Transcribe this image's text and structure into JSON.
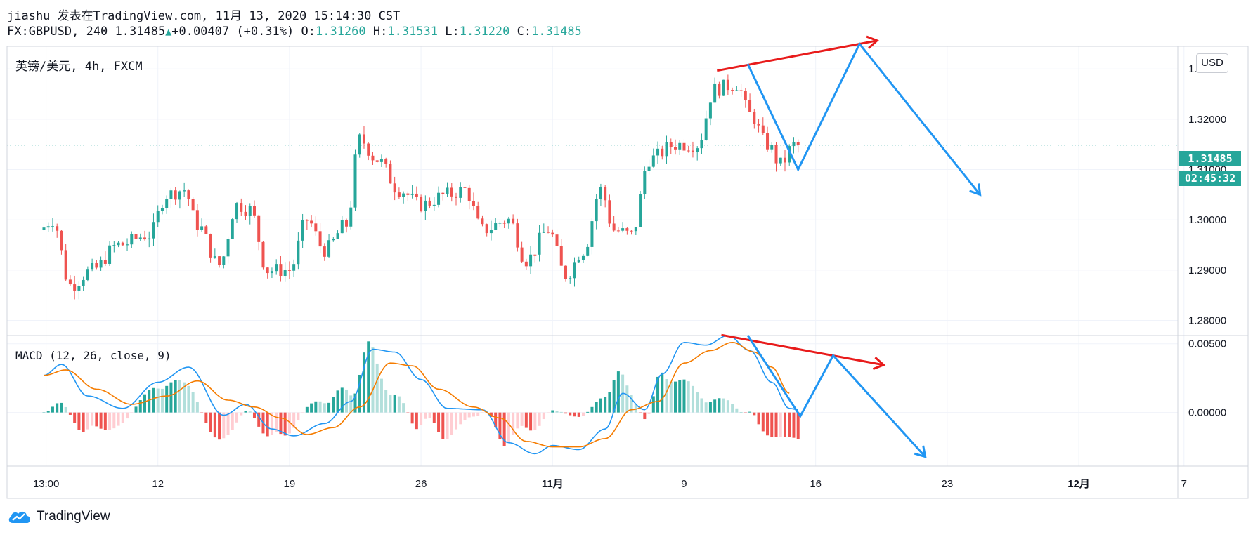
{
  "header": {
    "line1": "jiashu 发表在TradingView.com, 11月 13, 2020 15:14:30 CST",
    "symbol": "FX:GBPUSD, 240",
    "last": "1.31485",
    "change": "+0.00407 (+0.31%)",
    "o_label": "O:",
    "o": "1.31260",
    "h_label": "H:",
    "h": "1.31531",
    "l_label": "L:",
    "l": "1.31220",
    "c_label": "C:",
    "c": "1.31485"
  },
  "price_panel_label": "英镑/美元, 4h, FXCM",
  "macd_panel_label": "MACD (12, 26, close, 9)",
  "currency_button": "USD",
  "last_price_tag": "1.31485",
  "countdown_tag": "02:45:32",
  "footer_brand": "TradingView",
  "colors": {
    "up": "#26a69a",
    "down": "#ef5350",
    "macd": "#2196f3",
    "signal": "#f57c00",
    "hist_up_strong": "#26a69a",
    "hist_up_weak": "#b2dfdb",
    "hist_down_strong": "#ef5350",
    "hist_down_weak": "#ffcdd2",
    "arrow_red": "#e81b1b",
    "arrow_blue": "#2196f3"
  },
  "chart_data": [
    {
      "type": "candlestick",
      "yticks": [
        "1.28000",
        "1.29000",
        "1.30000",
        "1.31000",
        "1.32000",
        "1.33000"
      ],
      "ylim": [
        1.277,
        1.3345
      ],
      "xtick_labels": [
        {
          "label": "13:00",
          "t": 0.5
        },
        {
          "label": "12",
          "t": 26
        },
        {
          "label": "19",
          "t": 56
        },
        {
          "label": "26",
          "t": 86
        },
        {
          "label": "11月",
          "t": 116
        },
        {
          "label": "9",
          "t": 146
        },
        {
          "label": "16",
          "t": 176
        },
        {
          "label": "23",
          "t": 206
        },
        {
          "label": "12月",
          "t": 236
        },
        {
          "label": "7",
          "t": 260
        }
      ],
      "xlim": [
        -2,
        265
      ],
      "current_price": 1.31485,
      "key_points": [
        {
          "t": 0,
          "p": 1.298
        },
        {
          "t": 3,
          "p": 1.3
        },
        {
          "t": 7,
          "p": 1.287
        },
        {
          "t": 12,
          "p": 1.29
        },
        {
          "t": 18,
          "p": 1.295
        },
        {
          "t": 25,
          "p": 1.297
        },
        {
          "t": 29,
          "p": 1.305
        },
        {
          "t": 33,
          "p": 1.306
        },
        {
          "t": 36,
          "p": 1.299
        },
        {
          "t": 41,
          "p": 1.291
        },
        {
          "t": 45,
          "p": 1.303
        },
        {
          "t": 48,
          "p": 1.302
        },
        {
          "t": 52,
          "p": 1.29
        },
        {
          "t": 57,
          "p": 1.29
        },
        {
          "t": 61,
          "p": 1.3
        },
        {
          "t": 65,
          "p": 1.294
        },
        {
          "t": 70,
          "p": 1.299
        },
        {
          "t": 73,
          "p": 1.316
        },
        {
          "t": 77,
          "p": 1.312
        },
        {
          "t": 82,
          "p": 1.306
        },
        {
          "t": 87,
          "p": 1.303
        },
        {
          "t": 93,
          "p": 1.305
        },
        {
          "t": 97,
          "p": 1.306
        },
        {
          "t": 101,
          "p": 1.298
        },
        {
          "t": 107,
          "p": 1.3
        },
        {
          "t": 111,
          "p": 1.292
        },
        {
          "t": 116,
          "p": 1.298
        },
        {
          "t": 120,
          "p": 1.289
        },
        {
          "t": 124,
          "p": 1.294
        },
        {
          "t": 128,
          "p": 1.306
        },
        {
          "t": 131,
          "p": 1.298
        },
        {
          "t": 135,
          "p": 1.297
        },
        {
          "t": 139,
          "p": 1.312
        },
        {
          "t": 145,
          "p": 1.315
        },
        {
          "t": 150,
          "p": 1.315
        },
        {
          "t": 154,
          "p": 1.326
        },
        {
          "t": 159,
          "p": 1.327
        },
        {
          "t": 162,
          "p": 1.321
        },
        {
          "t": 166,
          "p": 1.315
        },
        {
          "t": 169,
          "p": 1.311
        },
        {
          "t": 172,
          "p": 1.31485
        }
      ],
      "last_candle_t": 172
    },
    {
      "type": "macd",
      "yticks": [
        "0.00500",
        "0.00000"
      ],
      "ylim": [
        -0.0039,
        0.0056
      ],
      "hist_threshold": 0.0005,
      "macd_points": [
        {
          "t": 0,
          "v": 0.0027
        },
        {
          "t": 4,
          "v": 0.0035
        },
        {
          "t": 10,
          "v": 0.0012
        },
        {
          "t": 18,
          "v": 0.0003
        },
        {
          "t": 26,
          "v": 0.0022
        },
        {
          "t": 33,
          "v": 0.0033
        },
        {
          "t": 41,
          "v": -0.0002
        },
        {
          "t": 46,
          "v": 0.0006
        },
        {
          "t": 52,
          "v": -0.0012
        },
        {
          "t": 57,
          "v": -0.0017
        },
        {
          "t": 64,
          "v": -0.0008
        },
        {
          "t": 70,
          "v": 0.0008
        },
        {
          "t": 75,
          "v": 0.0046
        },
        {
          "t": 80,
          "v": 0.0044
        },
        {
          "t": 86,
          "v": 0.0024
        },
        {
          "t": 92,
          "v": 0.0003
        },
        {
          "t": 100,
          "v": 0.0002
        },
        {
          "t": 106,
          "v": -0.0022
        },
        {
          "t": 112,
          "v": -0.003
        },
        {
          "t": 116,
          "v": -0.0024
        },
        {
          "t": 122,
          "v": -0.0027
        },
        {
          "t": 128,
          "v": -0.0012
        },
        {
          "t": 132,
          "v": 0.0014
        },
        {
          "t": 137,
          "v": 0.0002
        },
        {
          "t": 141,
          "v": 0.0028
        },
        {
          "t": 146,
          "v": 0.0051
        },
        {
          "t": 151,
          "v": 0.0049
        },
        {
          "t": 156,
          "v": 0.0056
        },
        {
          "t": 161,
          "v": 0.0045
        },
        {
          "t": 166,
          "v": 0.0022
        },
        {
          "t": 170,
          "v": 0.0003
        },
        {
          "t": 172,
          "v": 0.0002
        }
      ],
      "signal_points": [
        {
          "t": 0,
          "v": 0.0027
        },
        {
          "t": 5,
          "v": 0.0031
        },
        {
          "t": 12,
          "v": 0.0017
        },
        {
          "t": 20,
          "v": 0.0006
        },
        {
          "t": 28,
          "v": 0.0012
        },
        {
          "t": 35,
          "v": 0.0023
        },
        {
          "t": 42,
          "v": 0.0009
        },
        {
          "t": 48,
          "v": 0.0004
        },
        {
          "t": 54,
          "v": -0.0004
        },
        {
          "t": 60,
          "v": -0.0016
        },
        {
          "t": 66,
          "v": -0.0011
        },
        {
          "t": 72,
          "v": 0.0004
        },
        {
          "t": 79,
          "v": 0.0036
        },
        {
          "t": 84,
          "v": 0.0034
        },
        {
          "t": 90,
          "v": 0.0017
        },
        {
          "t": 98,
          "v": 0.0004
        },
        {
          "t": 104,
          "v": -0.0004
        },
        {
          "t": 110,
          "v": -0.0021
        },
        {
          "t": 116,
          "v": -0.0025
        },
        {
          "t": 122,
          "v": -0.0025
        },
        {
          "t": 128,
          "v": -0.0019
        },
        {
          "t": 134,
          "v": 0.0002
        },
        {
          "t": 140,
          "v": 0.0008
        },
        {
          "t": 146,
          "v": 0.0036
        },
        {
          "t": 152,
          "v": 0.0045
        },
        {
          "t": 157,
          "v": 0.0051
        },
        {
          "t": 162,
          "v": 0.0044
        },
        {
          "t": 166,
          "v": 0.0033
        },
        {
          "t": 170,
          "v": 0.0014
        }
      ]
    }
  ],
  "drawings": [
    {
      "name": "price-red-arrow",
      "color": "#e81b1b",
      "pane": "price",
      "points": [
        {
          "t": 153.5,
          "v": 1.32966
        },
        {
          "t": 190,
          "v": 1.33565
        }
      ],
      "arrow": true
    },
    {
      "name": "price-blue-zigzag",
      "color": "#2196f3",
      "pane": "price",
      "points": [
        {
          "t": 160.5,
          "v": 1.33099
        },
        {
          "t": 172,
          "v": 1.31
        },
        {
          "t": 186,
          "v": 1.33499
        },
        {
          "t": 213.5,
          "v": 1.305
        }
      ],
      "arrow": true
    },
    {
      "name": "macd-red-arrow",
      "color": "#e81b1b",
      "pane": "macd",
      "points": [
        {
          "t": 154.5,
          "v": 0.00564
        },
        {
          "t": 191.5,
          "v": 0.00346
        }
      ],
      "arrow": true
    },
    {
      "name": "macd-blue-zigzag",
      "color": "#2196f3",
      "pane": "macd",
      "points": [
        {
          "t": 160.5,
          "v": 0.00561
        },
        {
          "t": 172.5,
          "v": -0.00027
        },
        {
          "t": 180,
          "v": 0.00415
        },
        {
          "t": 201,
          "v": -0.00322
        }
      ],
      "arrow": true
    }
  ]
}
